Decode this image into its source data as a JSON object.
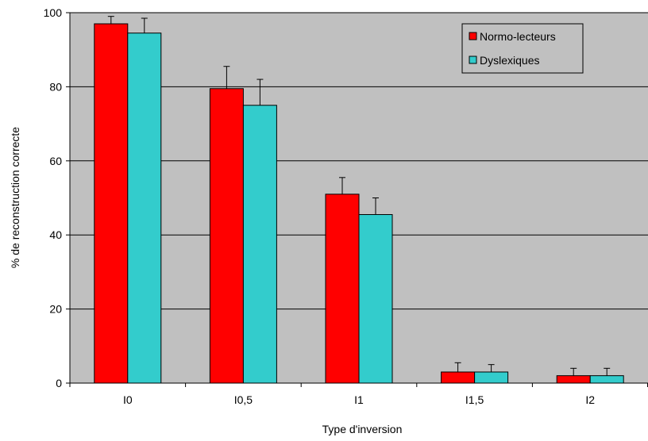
{
  "chart_data": {
    "type": "bar",
    "xlabel": "Type d'inversion",
    "ylabel": "% de reconstruction correcte",
    "categories": [
      "I0",
      "I0,5",
      "I1",
      "I1,5",
      "I2"
    ],
    "ylim": [
      0,
      100
    ],
    "yticks": [
      0,
      20,
      40,
      60,
      80,
      100
    ],
    "grid": true,
    "legend_position": "top-right",
    "background_color": "#C0C0C0",
    "series": [
      {
        "name": "Normo-lecteurs",
        "color": "#FF0000",
        "values": [
          97,
          79.5,
          51,
          3,
          2
        ],
        "errors": [
          2,
          6,
          4.5,
          2.5,
          2
        ]
      },
      {
        "name": "Dyslexiques",
        "color": "#33CCCC",
        "values": [
          94.5,
          75,
          45.5,
          3,
          2
        ],
        "errors": [
          4,
          7,
          4.5,
          2,
          2
        ]
      }
    ]
  }
}
